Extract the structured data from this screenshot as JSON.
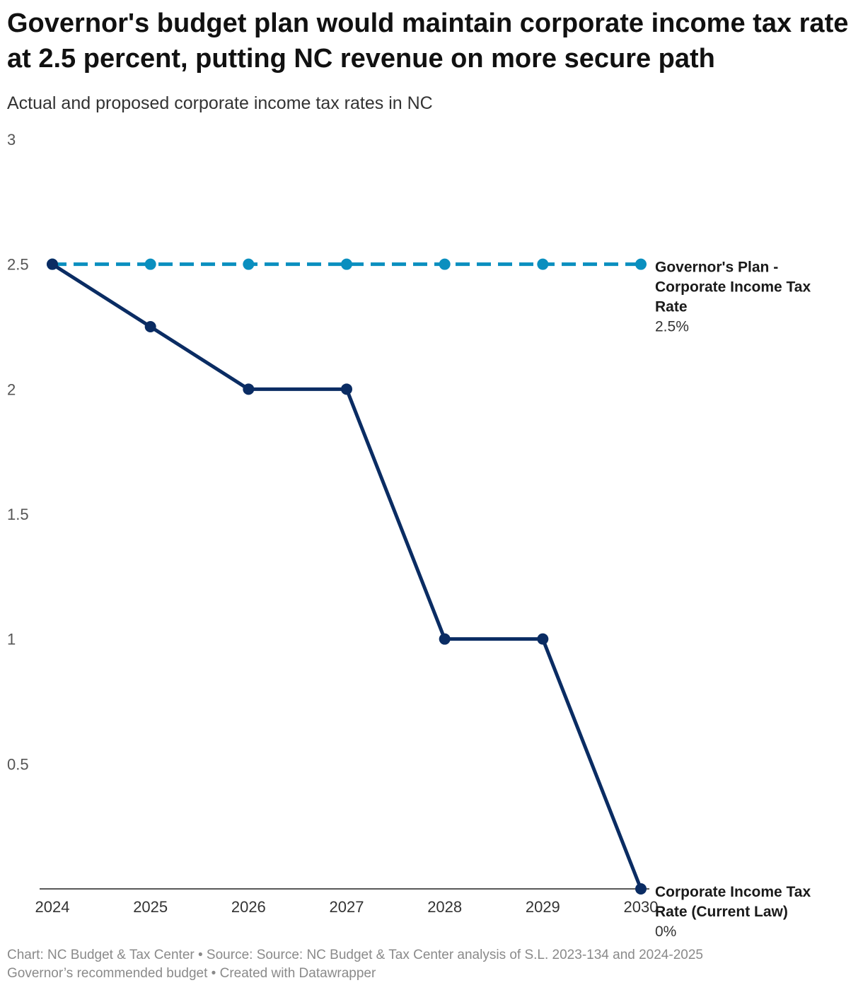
{
  "title": "Governor's budget plan would maintain corporate income tax rate at 2.5 percent, putting NC revenue on more secure path",
  "subtitle": "Actual and proposed corporate income tax rates in NC",
  "footer": {
    "line1": "Chart: NC Budget & Tax Center • Source: Source: NC Budget & Tax Center analysis of S.L. 2023-134 and 2024-2025",
    "line2": "Governor’s recommended budget • Created with Datawrapper"
  },
  "chart_data": {
    "type": "line",
    "title": "Governor's budget plan would maintain corporate income tax rate at 2.5 percent, putting NC revenue on more secure path",
    "subtitle": "Actual and proposed corporate income tax rates in NC",
    "x": [
      "2024",
      "2025",
      "2026",
      "2027",
      "2028",
      "2029",
      "2030"
    ],
    "ylim": [
      0,
      3
    ],
    "yticks": [
      "0.5",
      "1",
      "1.5",
      "2",
      "2.5",
      "3"
    ],
    "grid": false,
    "series": [
      {
        "name": "Governor's Plan - Corporate Income Tax Rate",
        "label_lines": [
          "Governor's Plan -",
          "Corporate Income Tax",
          "Rate"
        ],
        "end_label": "2.5%",
        "color": "#0a8fbf",
        "style": "dashed",
        "values": [
          2.5,
          2.5,
          2.5,
          2.5,
          2.5,
          2.5,
          2.5
        ]
      },
      {
        "name": "Corporate Income Tax Rate (Current Law)",
        "label_lines": [
          "Corporate Income Tax",
          "Rate (Current Law)"
        ],
        "end_label": "0%",
        "color": "#0a2c63",
        "style": "solid",
        "values": [
          2.5,
          2.25,
          2,
          2,
          1,
          1,
          0
        ]
      }
    ]
  }
}
